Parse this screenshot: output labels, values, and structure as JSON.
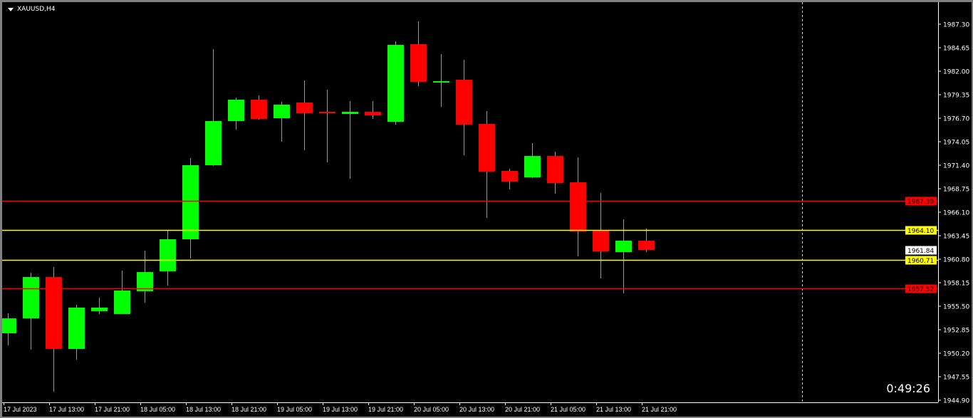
{
  "chart_data": {
    "type": "candlestick",
    "title": "XAUUSD,H4",
    "symbol": "XAUUSD",
    "timeframe": "H4",
    "ylim": [
      1944.66,
      1989.63
    ],
    "y_ticks": [
      "1987.30",
      "1984.65",
      "1982.00",
      "1979.35",
      "1976.70",
      "1974.05",
      "1971.40",
      "1968.75",
      "1966.10",
      "1963.45",
      "1960.80",
      "1958.15",
      "1955.50",
      "1952.85",
      "1950.20",
      "1947.55",
      "1944.90"
    ],
    "x_ticks": [
      "17 Jul 2023",
      "17 Jul 13:00",
      "17 Jul 21:00",
      "18 Jul 05:00",
      "18 Jul 13:00",
      "18 Jul 21:00",
      "19 Jul 05:00",
      "19 Jul 13:00",
      "19 Jul 21:00",
      "20 Jul 05:00",
      "20 Jul 13:00",
      "20 Jul 21:00",
      "21 Jul 05:00",
      "21 Jul 13:00",
      "21 Jul 21:00"
    ],
    "candles_ohlc": [
      [
        1952.45,
        1954.7,
        1951.08,
        1954.13
      ],
      [
        1954.13,
        1959.27,
        1950.6,
        1958.79
      ],
      [
        1958.79,
        1959.92,
        1945.86,
        1950.68
      ],
      [
        1950.68,
        1955.66,
        1949.48,
        1955.34
      ],
      [
        1954.94,
        1956.46,
        1954.62,
        1955.34
      ],
      [
        1954.62,
        1959.52,
        1954.62,
        1957.27
      ],
      [
        1957.19,
        1961.76,
        1955.9,
        1959.35
      ],
      [
        1959.44,
        1964.09,
        1957.83,
        1963.05
      ],
      [
        1963.05,
        1972.2,
        1960.88,
        1971.4
      ],
      [
        1971.4,
        1984.49,
        1971.32,
        1976.38
      ],
      [
        1976.38,
        1979.03,
        1975.42,
        1978.79
      ],
      [
        1978.79,
        1979.27,
        1976.54,
        1976.62
      ],
      [
        1976.7,
        1978.55,
        1974.05,
        1978.23
      ],
      [
        1978.47,
        1980.96,
        1973.09,
        1977.26
      ],
      [
        1977.42,
        1979.91,
        1971.72,
        1977.26
      ],
      [
        1977.18,
        1978.63,
        1969.87,
        1977.42
      ],
      [
        1977.42,
        1978.63,
        1976.62,
        1977.02
      ],
      [
        1976.3,
        1985.37,
        1975.98,
        1984.97
      ],
      [
        1985.05,
        1987.62,
        1980.31,
        1980.8
      ],
      [
        1980.72,
        1983.93,
        1977.98,
        1980.88
      ],
      [
        1981.04,
        1983.28,
        1972.52,
        1975.98
      ],
      [
        1976.06,
        1977.5,
        1965.46,
        1970.68
      ],
      [
        1970.76,
        1971.0,
        1968.67,
        1969.55
      ],
      [
        1970.03,
        1973.89,
        1969.95,
        1972.44
      ],
      [
        1972.44,
        1972.93,
        1968.19,
        1969.39
      ],
      [
        1969.47,
        1972.28,
        1961.12,
        1963.93
      ],
      [
        1964.01,
        1968.27,
        1958.63,
        1961.68
      ],
      [
        1961.6,
        1965.3,
        1956.95,
        1962.89
      ],
      [
        1962.89,
        1964.25,
        1961.6,
        1961.84
      ]
    ],
    "horizontal_lines": [
      {
        "price": "1967.39",
        "color": "#ff0000"
      },
      {
        "price": "1964.10",
        "color": "#ffff00"
      },
      {
        "price": "1960.71",
        "color": "#ffff00"
      },
      {
        "price": "1957.52",
        "color": "#ff0000"
      }
    ],
    "current_price": "1961.84",
    "colors": {
      "bull": "#00ff00",
      "bear": "#ff0000",
      "wick": "#9a9a9a",
      "axis": "#ffffff",
      "background": "#000000"
    },
    "bar_timer": "0:49:26",
    "grid": false
  }
}
